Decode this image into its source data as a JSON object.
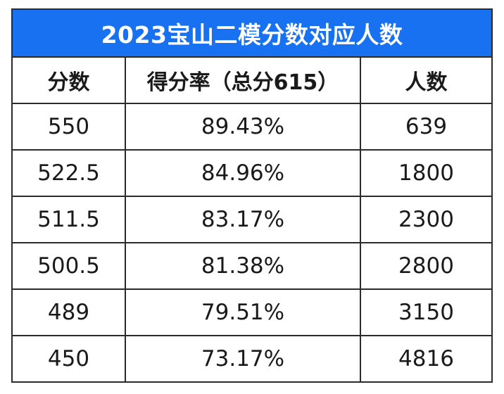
{
  "table": {
    "title": "2023宝山二模分数对应人数",
    "title_bg": "#1871f0",
    "border_color": "#2b2b2b",
    "headers": [
      "分数",
      "得分率（总分615）",
      "人数"
    ],
    "rows": [
      [
        "550",
        "89.43%",
        "639"
      ],
      [
        "522.5",
        "84.96%",
        "1800"
      ],
      [
        "511.5",
        "83.17%",
        "2300"
      ],
      [
        "500.5",
        "81.38%",
        "2800"
      ],
      [
        "489",
        "79.51%",
        "3150"
      ],
      [
        "450",
        "73.17%",
        "4816"
      ]
    ]
  }
}
